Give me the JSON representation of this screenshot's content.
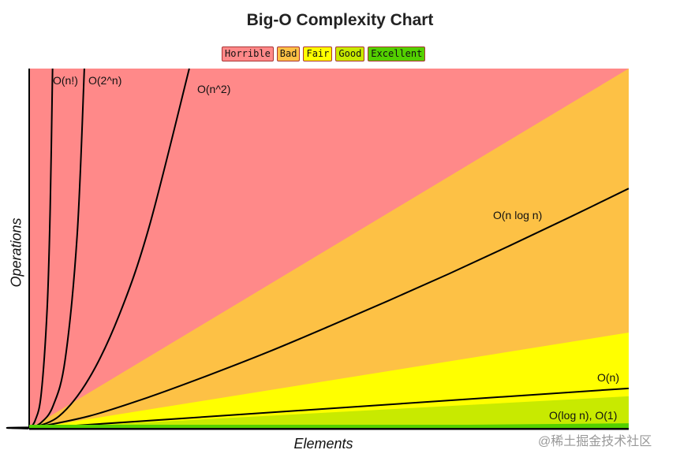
{
  "chart_data": {
    "type": "line",
    "title": "Big-O Complexity Chart",
    "xlabel": "Elements",
    "ylabel": "Operations",
    "xlim": [
      0,
      100
    ],
    "ylim": [
      0,
      100
    ],
    "grid": false,
    "legend_position": "top-center",
    "legend": [
      {
        "label": "Horrible",
        "color": "#ff8989"
      },
      {
        "label": "Bad",
        "color": "#fdc145"
      },
      {
        "label": "Fair",
        "color": "#ffff00"
      },
      {
        "label": "Good",
        "color": "#c8ea00"
      },
      {
        "label": "Excellent",
        "color": "#53d000"
      }
    ],
    "regions": [
      {
        "name": "Horrible",
        "color": "#ff8989",
        "upper_slope": null
      },
      {
        "name": "Bad",
        "color": "#fdc145",
        "upper_at_100": 100
      },
      {
        "name": "Fair",
        "color": "#ffff00",
        "upper_at_100": 26.7
      },
      {
        "name": "Good",
        "color": "#c8ea00",
        "upper_at_100": 9
      },
      {
        "name": "Excellent",
        "color": "#53d000",
        "upper_at_100": 1.5
      }
    ],
    "series": [
      {
        "name": "O(n!)",
        "x": [
          0,
          1,
          2,
          3,
          3.5,
          3.9
        ],
        "y": [
          0,
          2.3,
          9.6,
          33.5,
          61,
          100
        ]
      },
      {
        "name": "O(2^n)",
        "x": [
          0,
          2,
          4,
          6,
          8,
          9.2
        ],
        "y": [
          0,
          1.7,
          6.4,
          19.2,
          53.7,
          100
        ]
      },
      {
        "name": "O(n^2)",
        "x": [
          0,
          5,
          10,
          15,
          20,
          26.7
        ],
        "y": [
          0,
          3.5,
          14,
          31.5,
          56,
          100
        ]
      },
      {
        "name": "O(n log n)",
        "x": [
          0,
          10,
          20,
          30,
          40,
          50,
          60,
          70,
          80,
          90,
          100
        ],
        "y": [
          0,
          3.5,
          8.8,
          14.9,
          21.4,
          28.4,
          35.6,
          43,
          50.7,
          58.6,
          66.7
        ]
      },
      {
        "name": "O(n)",
        "x": [
          0,
          100
        ],
        "y": [
          0,
          11.2
        ]
      },
      {
        "name": "O(log n), O(1)",
        "x": [
          0,
          5,
          100
        ],
        "y": [
          0,
          0.4,
          0.7
        ]
      }
    ]
  },
  "watermark": "@稀土掘金技术社区"
}
